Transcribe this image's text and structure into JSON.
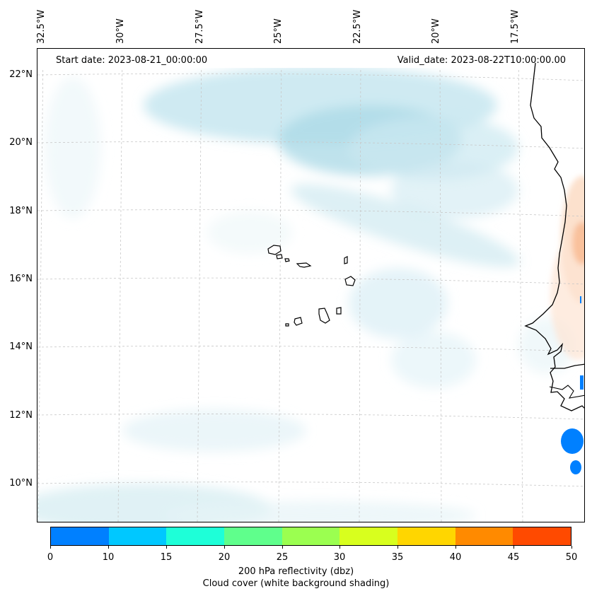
{
  "header": {
    "start_date": "Start date: 2023-08-21_00:00:00",
    "valid_date": "Valid_date: 2023-08-22T10:00:00.00"
  },
  "longitude_labels": [
    "32.5°W",
    "30°W",
    "27.5°W",
    "25°W",
    "22.5°W",
    "20°W",
    "17.5°W"
  ],
  "latitude_labels": [
    "22°N",
    "20°N",
    "18°N",
    "16°N",
    "14°N",
    "12°N",
    "10°N"
  ],
  "colorbar": {
    "ticks": [
      "0",
      "10",
      "15",
      "20",
      "25",
      "30",
      "35",
      "40",
      "45",
      "50"
    ],
    "colors": [
      "#0080ff",
      "#00c8ff",
      "#1effd8",
      "#5fff8c",
      "#9bff50",
      "#d8ff1e",
      "#ffd600",
      "#ff8a00",
      "#ff4a00"
    ],
    "label_line1": "200 hPa reflectivity (dbz)",
    "label_line2": "Cloud cover (white background shading)"
  },
  "map": {
    "land_color": "#ffffff",
    "cloud_color": "#a8d8e6",
    "coast_color": "#000000"
  }
}
